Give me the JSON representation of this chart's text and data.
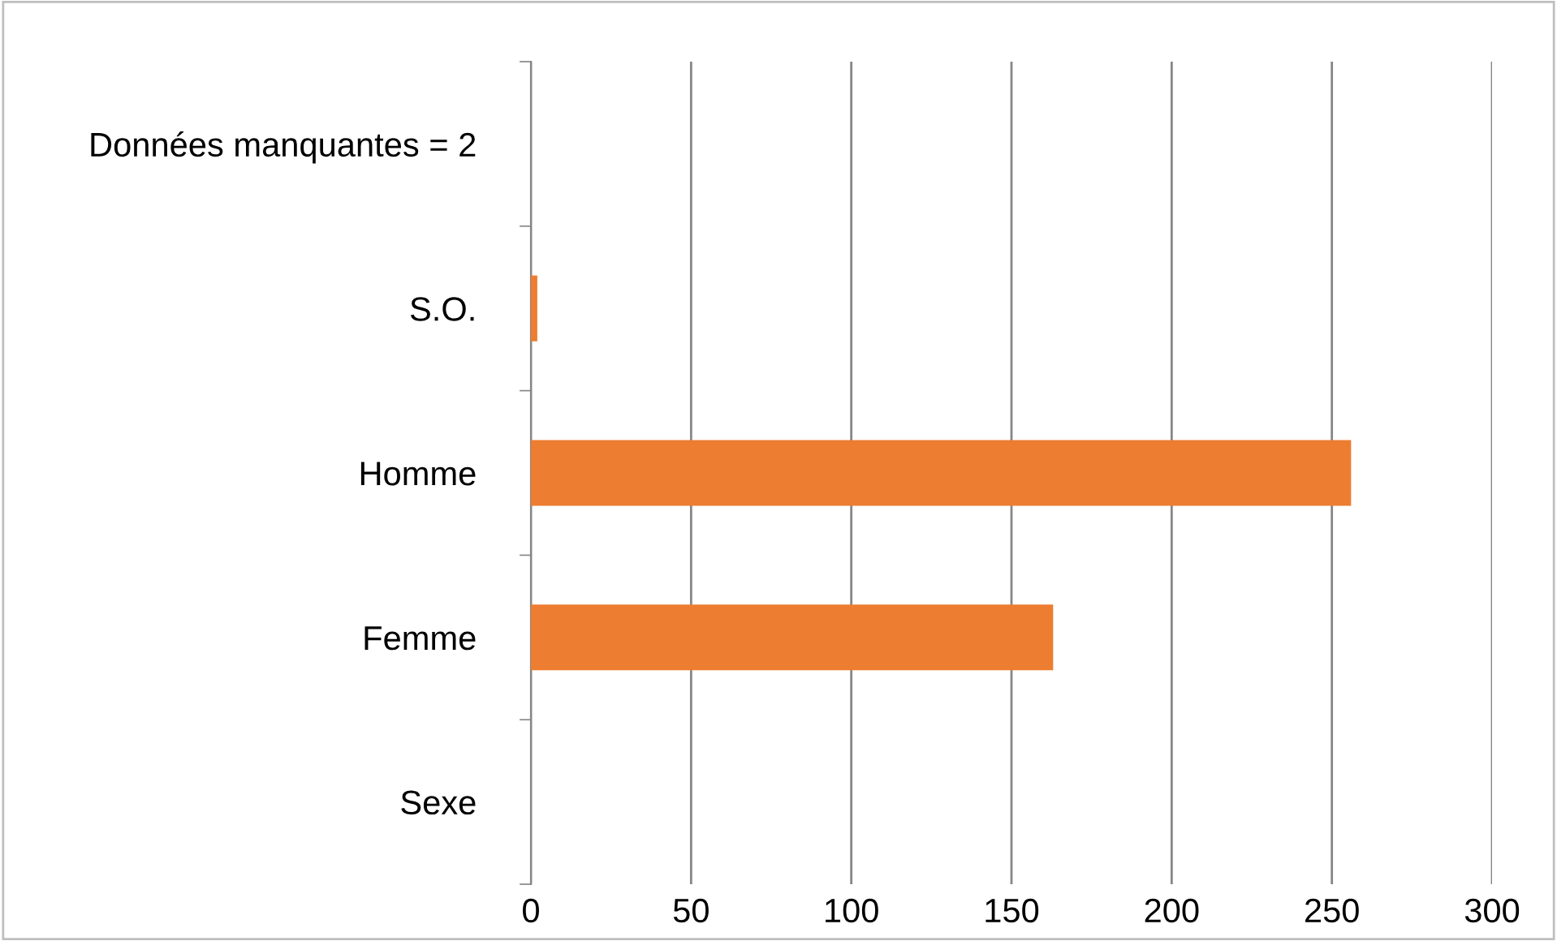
{
  "chart_data": {
    "type": "bar",
    "orientation": "horizontal",
    "categories": [
      "Données manquantes = 2",
      "S.O.",
      "Homme",
      "Femme",
      "Sexe"
    ],
    "values": [
      null,
      2,
      256,
      163,
      null
    ],
    "color": "#ed7d31",
    "xlim": [
      0,
      300
    ],
    "xticks": [
      0,
      50,
      100,
      150,
      200,
      250,
      300
    ],
    "grid": "x",
    "legend": false
  }
}
